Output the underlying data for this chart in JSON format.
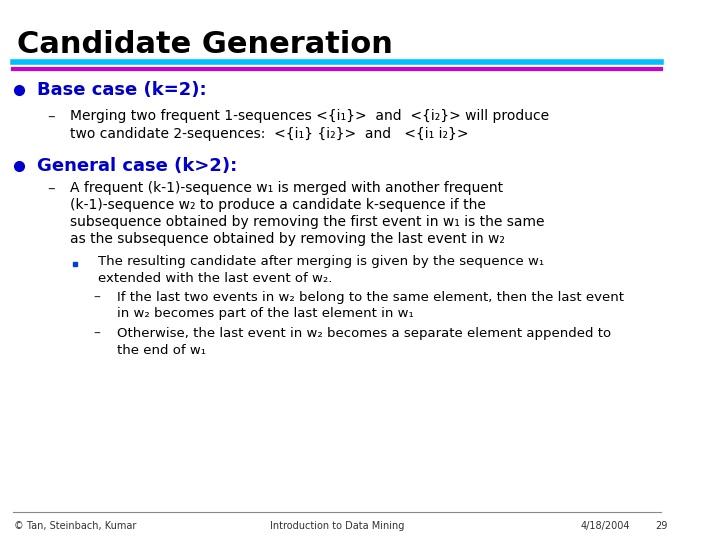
{
  "title": "Candidate Generation",
  "title_fontsize": 22,
  "title_bold": true,
  "line1_color": "#00BFFF",
  "line2_color": "#CC00CC",
  "bg_color": "#FFFFFF",
  "bullet_color": "#0000CC",
  "text_color": "#000000",
  "footer_left": "© Tan, Steinbach, Kumar",
  "footer_center": "Introduction to Data Mining",
  "footer_right": "4/18/2004",
  "footer_page": "29",
  "content": [
    {
      "type": "bullet",
      "level": 0,
      "text": "Base case (k=2):",
      "bold": true,
      "color": "#0000CC"
    },
    {
      "type": "bullet",
      "level": 1,
      "text": "Merging two frequent 1-sequences <{i₁}>  and  <{i₂}> will produce\ntwo candidate 2-sequences:  <{i₁} {i₂}>  and   <{i₁ i₂}>",
      "bold": false,
      "color": "#000000"
    },
    {
      "type": "bullet",
      "level": 0,
      "text": "General case (k>2):",
      "bold": true,
      "color": "#0000CC"
    },
    {
      "type": "bullet",
      "level": 1,
      "text": "A frequent (k-1)-sequence w₁ is merged with another frequent\n(k-1)-sequence w₂ to produce a candidate k-sequence if the\nsubsequence obtained by removing the first event in w₁ is the same\nas the subsequence obtained by removing the last event in w₂",
      "bold": false,
      "color": "#000000"
    },
    {
      "type": "bullet",
      "level": 2,
      "text": "The resulting candidate after merging is given by the sequence w₁\nextended with the last event of w₂.",
      "bold": false,
      "color": "#000000"
    },
    {
      "type": "sub_dash",
      "level": 2,
      "text": "If the last two events in w₂ belong to the same element, then the last event\nin w₂ becomes part of the last element in w₁",
      "bold": false,
      "color": "#000000"
    },
    {
      "type": "sub_dash",
      "level": 2,
      "text": "Otherwise, the last event in w₂ becomes a separate element appended to\nthe end of w₁",
      "bold": false,
      "color": "#000000"
    }
  ]
}
